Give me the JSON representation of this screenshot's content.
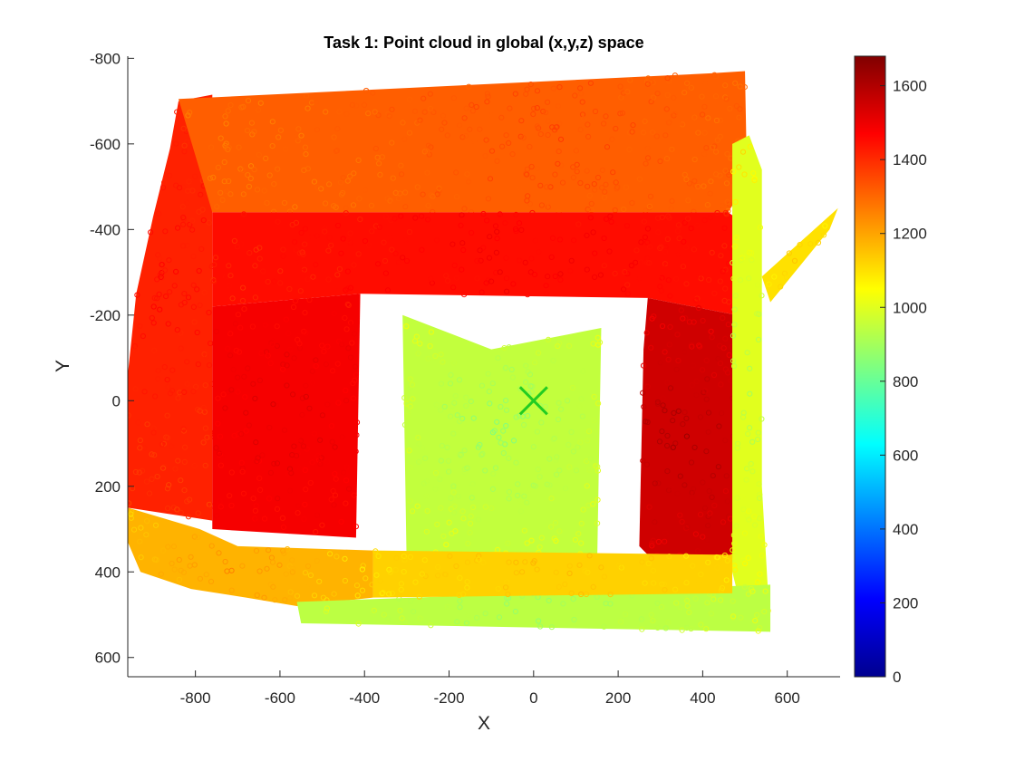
{
  "chart_data": {
    "type": "scatter",
    "title": "Task 1: Point cloud in global (x,y,z) space",
    "xlabel": "X",
    "ylabel": "Y",
    "xlim": [
      -960,
      725
    ],
    "ylim": [
      645,
      -805
    ],
    "y_reversed": true,
    "xticks": [
      -800,
      -600,
      -400,
      -200,
      0,
      200,
      400,
      600
    ],
    "yticks": [
      -800,
      -600,
      -400,
      -200,
      0,
      200,
      400,
      600
    ],
    "colormap": "jet",
    "clim": [
      0,
      1680
    ],
    "colorbar_ticks": [
      0,
      200,
      400,
      600,
      800,
      1000,
      1200,
      1400,
      1600
    ],
    "marker": "open circle",
    "marker_color_encodes": "z",
    "grid": false,
    "regions": [
      {
        "kind": "left-wall",
        "polygon": [
          [
            -960,
            -60
          ],
          [
            -940,
            -250
          ],
          [
            -900,
            -430
          ],
          [
            -860,
            -590
          ],
          [
            -840,
            -700
          ],
          [
            -760,
            -715
          ],
          [
            -760,
            280
          ],
          [
            -960,
            250
          ]
        ],
        "z_inner": 1450,
        "z_outer": 1380
      },
      {
        "kind": "bottom-left-floor",
        "polygon": [
          [
            -960,
            250
          ],
          [
            -790,
            300
          ],
          [
            -700,
            340
          ],
          [
            -380,
            350
          ],
          [
            -380,
            460
          ],
          [
            -560,
            480
          ],
          [
            -680,
            460
          ],
          [
            -810,
            440
          ],
          [
            -930,
            400
          ],
          [
            -960,
            330
          ]
        ],
        "z_inner": 1250,
        "z_outer": 1100
      },
      {
        "kind": "back-wall",
        "polygon": [
          [
            -840,
            -705
          ],
          [
            420,
            -765
          ],
          [
            500,
            -770
          ],
          [
            505,
            -510
          ],
          [
            460,
            -440
          ],
          [
            -760,
            -440
          ]
        ],
        "z_inner": 1350,
        "z_outer": 1280
      },
      {
        "kind": "upper-inner-band",
        "polygon": [
          [
            -760,
            -440
          ],
          [
            460,
            -440
          ],
          [
            490,
            -420
          ],
          [
            480,
            -200
          ],
          [
            270,
            -240
          ],
          [
            -410,
            -250
          ],
          [
            -760,
            -220
          ]
        ],
        "z_inner": 1480,
        "z_outer": 1420
      },
      {
        "kind": "center-left-band",
        "polygon": [
          [
            -760,
            -220
          ],
          [
            -410,
            -250
          ],
          [
            -420,
            320
          ],
          [
            -760,
            300
          ]
        ],
        "z_inner": 1520,
        "z_outer": 1450
      },
      {
        "kind": "right-block",
        "polygon": [
          [
            270,
            -240
          ],
          [
            480,
            -200
          ],
          [
            470,
            400
          ],
          [
            310,
            400
          ],
          [
            250,
            340
          ],
          [
            260,
            -120
          ]
        ],
        "z_inner": 1620,
        "z_outer": 1480
      },
      {
        "kind": "right-strip",
        "polygon": [
          [
            470,
            -600
          ],
          [
            510,
            -620
          ],
          [
            540,
            -540
          ],
          [
            540,
            200
          ],
          [
            560,
            540
          ],
          [
            500,
            520
          ],
          [
            470,
            400
          ]
        ],
        "z_inner": 900,
        "z_outer": 1100
      },
      {
        "kind": "center-floor",
        "polygon": [
          [
            -310,
            -200
          ],
          [
            -100,
            -120
          ],
          [
            160,
            -170
          ],
          [
            150,
            400
          ],
          [
            -300,
            400
          ]
        ],
        "z_inner": 850,
        "z_outer": 1050
      },
      {
        "kind": "bottom-strip",
        "polygon": [
          [
            -560,
            470
          ],
          [
            560,
            430
          ],
          [
            560,
            540
          ],
          [
            -550,
            520
          ]
        ],
        "z_inner": 880,
        "z_outer": 1000
      },
      {
        "kind": "bottom-inner",
        "polygon": [
          [
            -380,
            350
          ],
          [
            470,
            360
          ],
          [
            470,
            450
          ],
          [
            -380,
            460
          ]
        ],
        "z_inner": 1150,
        "z_outer": 1100
      },
      {
        "kind": "right-spray",
        "polygon": [
          [
            540,
            -290
          ],
          [
            720,
            -450
          ],
          [
            700,
            -400
          ],
          [
            560,
            -230
          ]
        ],
        "z_inner": 1150,
        "z_outer": 1050
      }
    ],
    "annotations": [
      {
        "type": "marker",
        "symbol": "x",
        "x": 0,
        "y": 0,
        "color": "#22cc22"
      }
    ]
  }
}
